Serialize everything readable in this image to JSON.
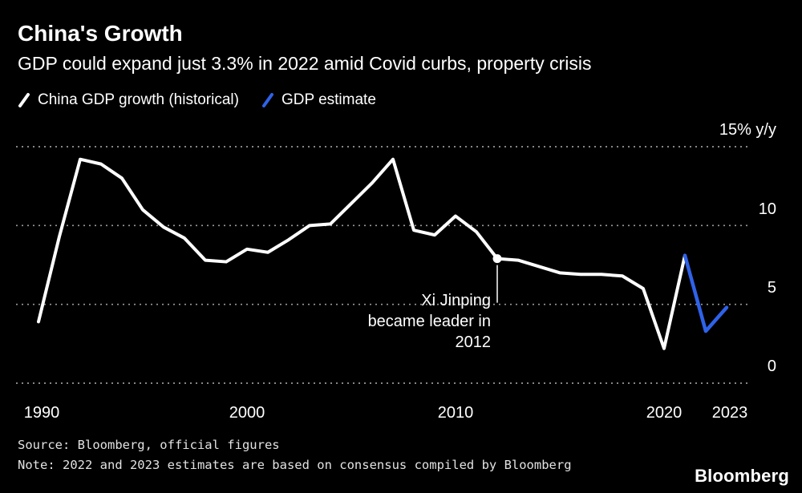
{
  "header": {
    "title": "China's Growth",
    "subtitle": "GDP could expand just 3.3% in 2022 amid Covid curbs, property crisis"
  },
  "footer": {
    "source": "Source: Bloomberg, official figures",
    "note": "Note: 2022 and 2023 estimates are based on consensus compiled by Bloomberg",
    "logo": "Bloomberg"
  },
  "colors": {
    "background": "#000000",
    "historical_line": "#ffffff",
    "estimate_line": "#2f62e9",
    "gridline": "#999999"
  },
  "chart_data": {
    "type": "line",
    "title": "China's Growth",
    "subtitle": "GDP could expand just 3.3% in 2022 amid Covid curbs, property crisis",
    "ylabel": "% y/y",
    "xlim": [
      1990,
      2023
    ],
    "ylim": [
      0,
      15
    ],
    "grid": "horizontal-dotted",
    "legend_position": "top-left",
    "yticks": [
      {
        "value": 15,
        "label": "15% y/y"
      },
      {
        "value": 10,
        "label": "10"
      },
      {
        "value": 5,
        "label": "5"
      },
      {
        "value": 0,
        "label": "0"
      }
    ],
    "xticks": [
      {
        "value": 1990,
        "label": "1990"
      },
      {
        "value": 2000,
        "label": "2000"
      },
      {
        "value": 2010,
        "label": "2010"
      },
      {
        "value": 2020,
        "label": "2020"
      },
      {
        "value": 2023,
        "label": "2023"
      }
    ],
    "series": [
      {
        "name": "China GDP growth (historical)",
        "color": "#ffffff",
        "width": 4,
        "x": [
          1990,
          1991,
          1992,
          1993,
          1994,
          1995,
          1996,
          1997,
          1998,
          1999,
          2000,
          2001,
          2002,
          2003,
          2004,
          2005,
          2006,
          2007,
          2008,
          2009,
          2010,
          2011,
          2012,
          2013,
          2014,
          2015,
          2016,
          2017,
          2018,
          2019,
          2020,
          2021
        ],
        "values": [
          3.9,
          9.3,
          14.2,
          13.9,
          13.0,
          11.0,
          9.9,
          9.2,
          7.8,
          7.7,
          8.5,
          8.3,
          9.1,
          10.0,
          10.1,
          11.4,
          12.7,
          14.2,
          9.7,
          9.4,
          10.6,
          9.6,
          7.9,
          7.8,
          7.4,
          7.0,
          6.9,
          6.9,
          6.8,
          6.0,
          2.2,
          8.1
        ]
      },
      {
        "name": "GDP estimate",
        "color": "#2f62e9",
        "width": 4.5,
        "x": [
          2021,
          2022,
          2023
        ],
        "values": [
          8.1,
          3.3,
          4.8
        ]
      }
    ],
    "annotation": {
      "lines": [
        "Xi Jinping",
        "became leader in",
        "2012"
      ],
      "year": 2012,
      "value": 7.9
    }
  }
}
